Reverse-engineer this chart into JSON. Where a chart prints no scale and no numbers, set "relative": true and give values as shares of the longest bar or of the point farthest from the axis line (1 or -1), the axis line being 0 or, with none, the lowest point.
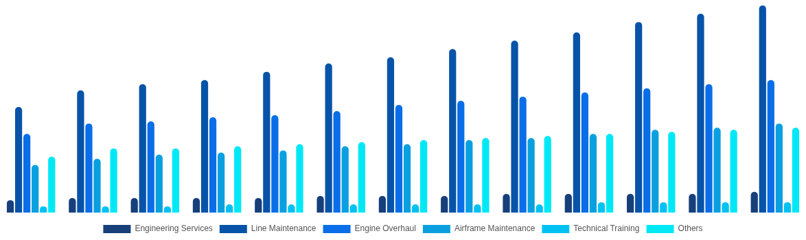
{
  "chart_data": {
    "type": "bar",
    "relative": true,
    "legend": "bottom",
    "categories": [
      null,
      null,
      null,
      null,
      null,
      null,
      null,
      null,
      null,
      null,
      null,
      null,
      null
    ],
    "series": [
      {
        "name": "Engineering Services",
        "color": "#173f7a",
        "values": [
          0.06,
          0.07,
          0.07,
          0.07,
          0.07,
          0.08,
          0.08,
          0.08,
          0.09,
          0.09,
          0.09,
          0.09,
          0.1
        ]
      },
      {
        "name": "Line Maintenance",
        "color": "#0753a8",
        "values": [
          0.51,
          0.59,
          0.62,
          0.64,
          0.68,
          0.72,
          0.75,
          0.79,
          0.83,
          0.87,
          0.92,
          0.96,
          1
        ]
      },
      {
        "name": "Engine Overhaul",
        "color": "#0a6ee8",
        "values": [
          0.38,
          0.43,
          0.44,
          0.46,
          0.47,
          0.49,
          0.52,
          0.54,
          0.56,
          0.58,
          0.6,
          0.62,
          0.64
        ]
      },
      {
        "name": "Airframe Maintenance",
        "color": "#0aa0e0",
        "values": [
          0.23,
          0.26,
          0.28,
          0.29,
          0.3,
          0.32,
          0.33,
          0.35,
          0.36,
          0.38,
          0.4,
          0.41,
          0.43
        ]
      },
      {
        "name": "Technical Training",
        "color": "#00c2f2",
        "values": [
          0.03,
          0.03,
          0.03,
          0.04,
          0.04,
          0.04,
          0.04,
          0.04,
          0.04,
          0.05,
          0.05,
          0.05,
          0.05
        ]
      },
      {
        "name": "Others",
        "color": "#00e8f5",
        "values": [
          0.27,
          0.31,
          0.31,
          0.32,
          0.33,
          0.34,
          0.35,
          0.36,
          0.37,
          0.38,
          0.39,
          0.4,
          0.41
        ]
      }
    ]
  }
}
